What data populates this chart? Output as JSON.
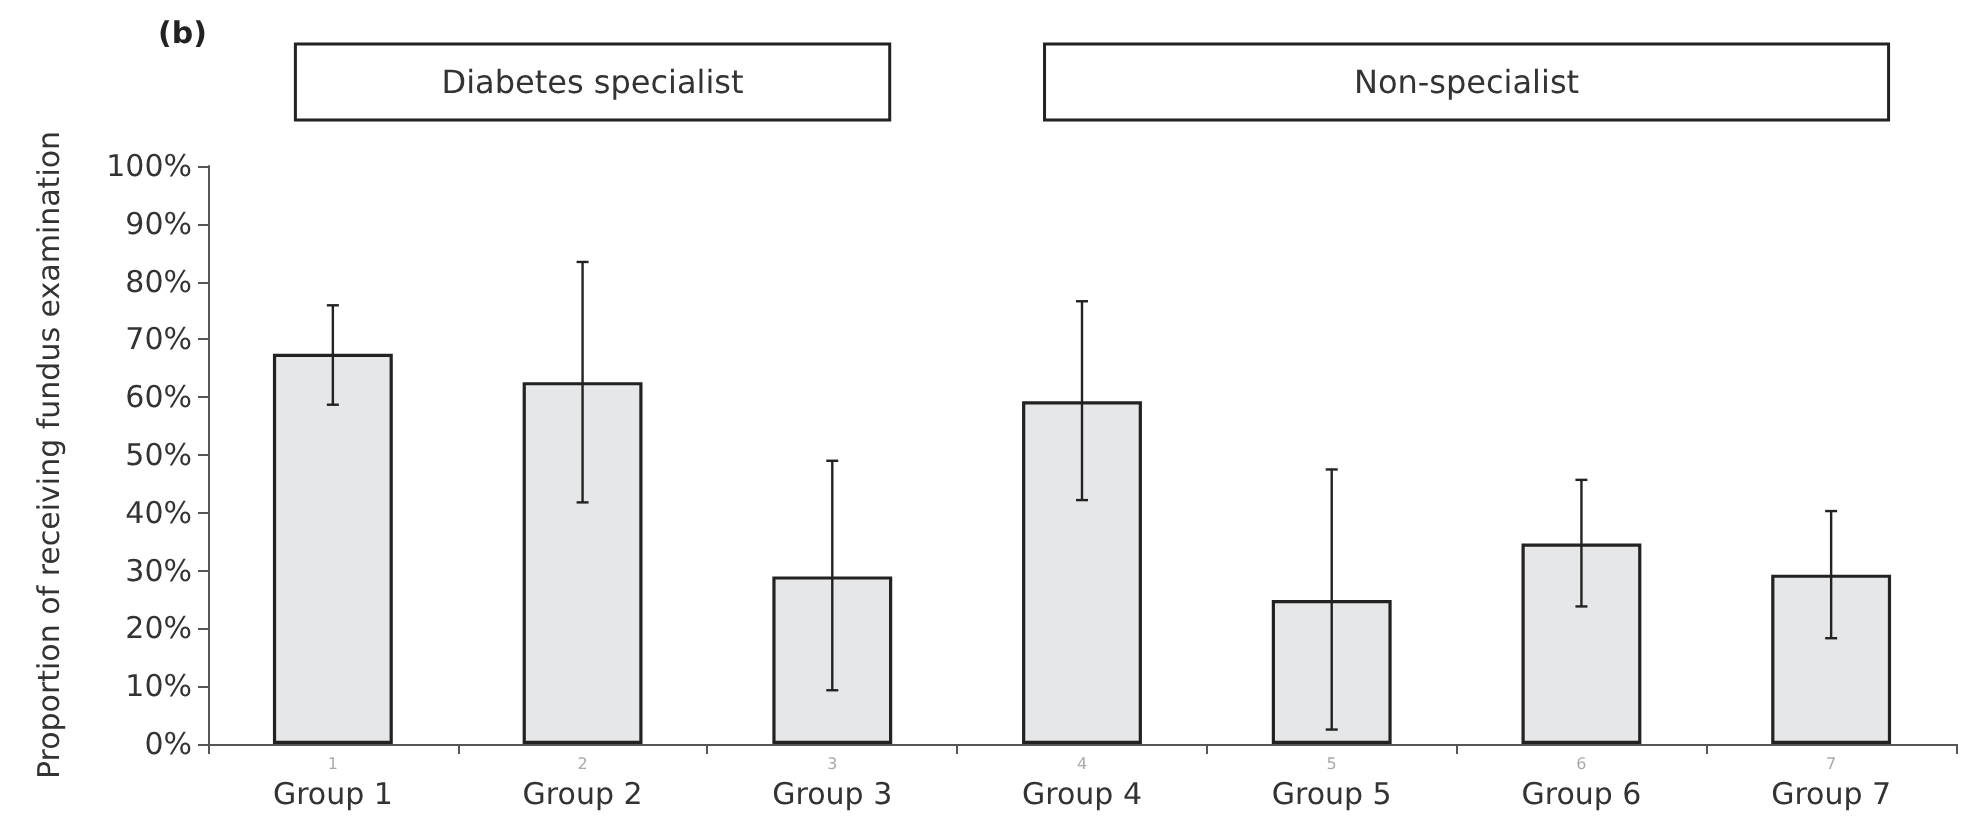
{
  "chart_data": {
    "type": "bar",
    "title": "(b)",
    "ylabel": "Proportion of receiving fundus examination",
    "categories": [
      "Group 1",
      "Group 2",
      "Group 3",
      "Group 4",
      "Group 5",
      "Group 6",
      "Group 7"
    ],
    "values": [
      67.5,
      62.6,
      29.0,
      59.3,
      24.9,
      34.7,
      29.3
    ],
    "errors": [
      [
        58.7,
        75.9
      ],
      [
        41.8,
        83.4
      ],
      [
        9.3,
        49.0
      ],
      [
        42.2,
        76.6
      ],
      [
        2.5,
        47.5
      ],
      [
        23.8,
        45.7
      ],
      [
        18.3,
        40.3
      ]
    ],
    "color": "#e6e7e9",
    "ylim": [
      0,
      100
    ],
    "yticks": [
      {
        "value": 0,
        "label": "0%"
      },
      {
        "value": 10,
        "label": "10%"
      },
      {
        "value": 20,
        "label": "20%"
      },
      {
        "value": 30,
        "label": "30%"
      },
      {
        "value": 40,
        "label": "40%"
      },
      {
        "value": 50,
        "label": "50%"
      },
      {
        "value": 60,
        "label": "60%"
      },
      {
        "value": 70,
        "label": "70%"
      },
      {
        "value": 80,
        "label": "80%"
      },
      {
        "value": 90,
        "label": "90%"
      },
      {
        "value": 100,
        "label": "100%"
      }
    ],
    "grid": false,
    "annotations": [
      "Diabetes specialist",
      "Non-specialist",
      "1",
      "2",
      "3",
      "4",
      "5",
      "6",
      "7"
    ]
  }
}
